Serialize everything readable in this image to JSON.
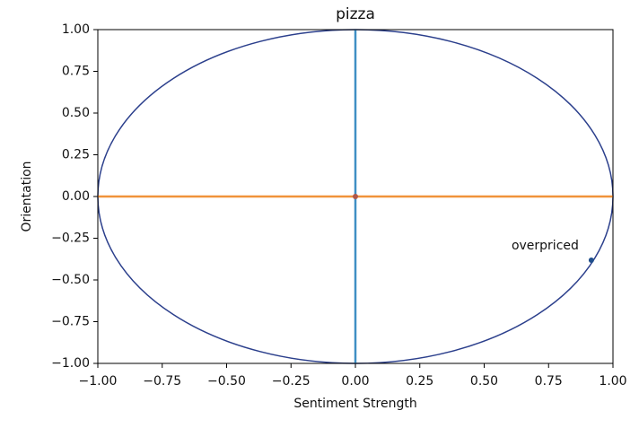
{
  "chart_data": {
    "type": "scatter",
    "title": "pizza",
    "xlabel": "Sentiment Strength",
    "ylabel": "Orientation",
    "xlim": [
      -1,
      1
    ],
    "ylim": [
      -1,
      1
    ],
    "xticks": [
      {
        "value": -1,
        "label": "−1.00"
      },
      {
        "value": -0.75,
        "label": "−0.75"
      },
      {
        "value": -0.5,
        "label": "−0.50"
      },
      {
        "value": -0.25,
        "label": "−0.25"
      },
      {
        "value": 0,
        "label": "0.00"
      },
      {
        "value": 0.25,
        "label": "0.25"
      },
      {
        "value": 0.5,
        "label": "0.50"
      },
      {
        "value": 0.75,
        "label": "0.75"
      },
      {
        "value": 1,
        "label": "1.00"
      }
    ],
    "yticks": [
      {
        "value": -1,
        "label": "−1.00"
      },
      {
        "value": -0.75,
        "label": "−0.75"
      },
      {
        "value": -0.5,
        "label": "−0.50"
      },
      {
        "value": -0.25,
        "label": "−0.25"
      },
      {
        "value": 0,
        "label": "0.00"
      },
      {
        "value": 0.25,
        "label": "0.25"
      },
      {
        "value": 0.5,
        "label": "0.50"
      },
      {
        "value": 0.75,
        "label": "0.75"
      },
      {
        "value": 1,
        "label": "1.00"
      }
    ],
    "reference_circle": {
      "radius": 1,
      "color": "#2b3f8c"
    },
    "reference_lines": [
      {
        "axis": "x",
        "value": 0,
        "color": "#3f8fc4"
      },
      {
        "axis": "y",
        "value": 0,
        "color": "#f0933a"
      }
    ],
    "points": {
      "x": [
        0,
        0.916
      ],
      "y": [
        0,
        -0.382
      ],
      "labels": [
        null,
        "overpriced"
      ],
      "colors": [
        "#b0584a",
        "#1f4e8c"
      ]
    }
  }
}
